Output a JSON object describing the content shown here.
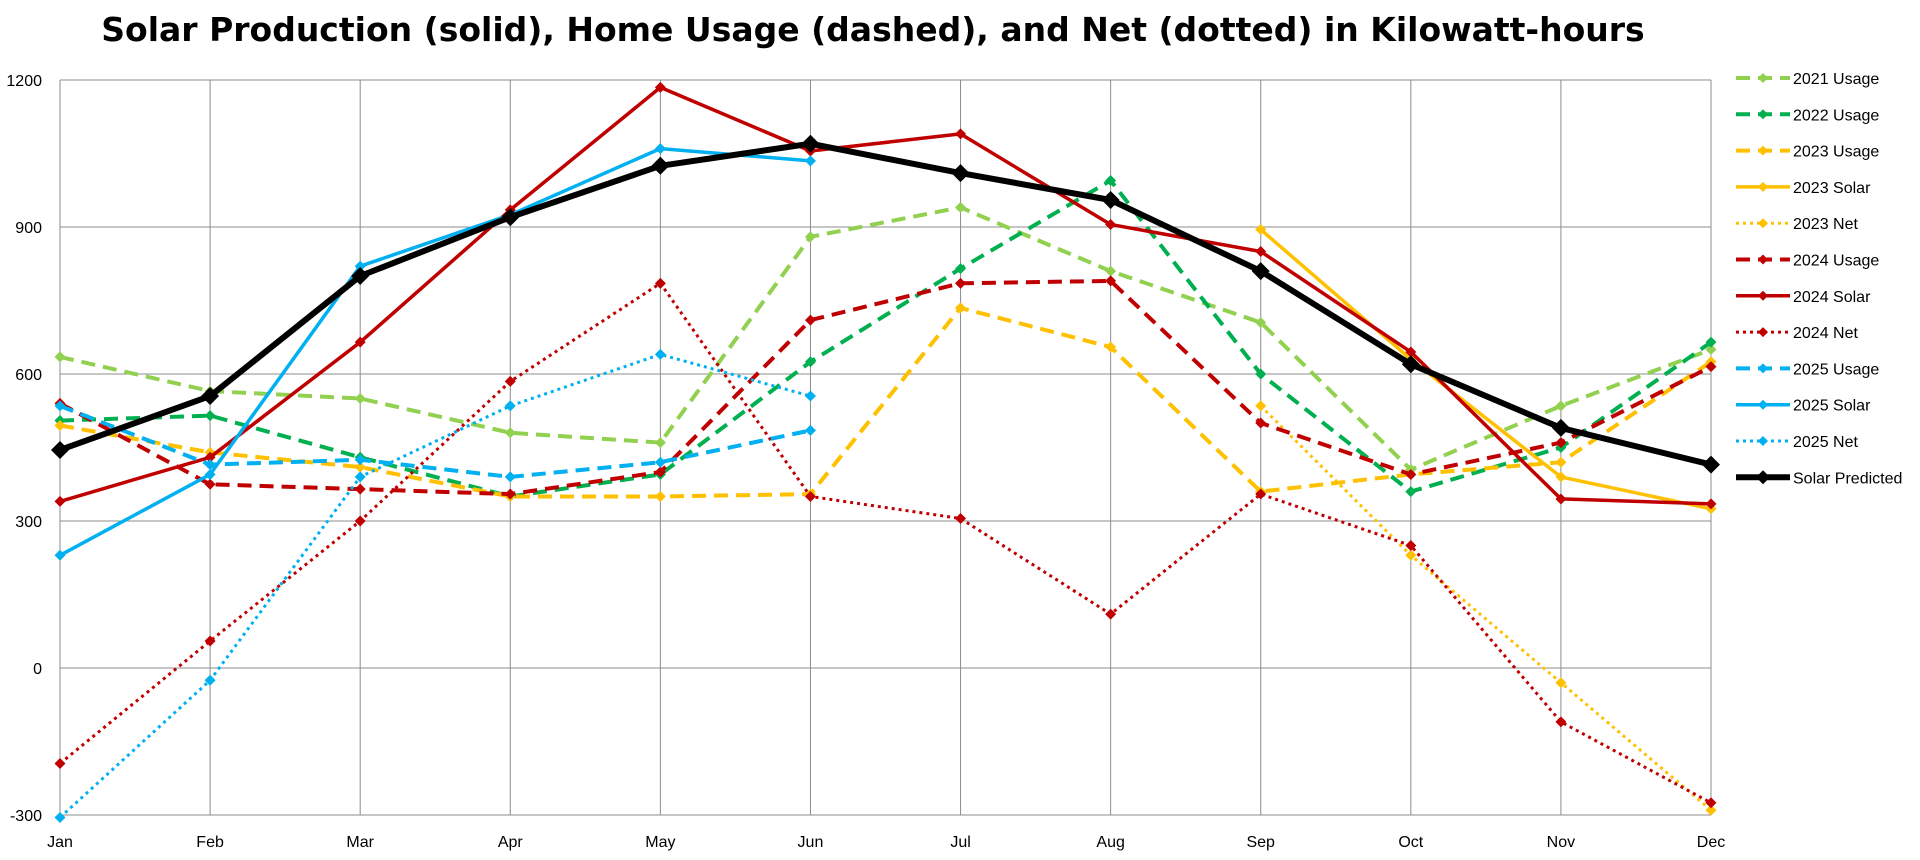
{
  "chart_data": {
    "type": "line",
    "title": "Solar Production (solid), Home Usage (dashed), and Net (dotted) in Kilowatt-hours",
    "xlabel": "",
    "ylabel": "",
    "ylim": [
      -300,
      1200
    ],
    "yticks": [
      -300,
      0,
      300,
      600,
      900,
      1200
    ],
    "grid": true,
    "legend_position": "right",
    "categories": [
      "Jan",
      "Feb",
      "Mar",
      "Apr",
      "May",
      "Jun",
      "Jul",
      "Aug",
      "Sep",
      "Oct",
      "Nov",
      "Dec"
    ],
    "series": [
      {
        "name": "2021 Usage",
        "color": "#92D050",
        "style": "dashed",
        "values": [
          635,
          565,
          550,
          480,
          460,
          880,
          940,
          810,
          705,
          405,
          535,
          650
        ]
      },
      {
        "name": "2022 Usage",
        "color": "#00B050",
        "style": "dashed",
        "values": [
          505,
          515,
          430,
          350,
          395,
          625,
          815,
          995,
          600,
          360,
          450,
          665
        ]
      },
      {
        "name": "2023 Usage",
        "color": "#FFC000",
        "style": "dashed",
        "values": [
          495,
          440,
          410,
          350,
          350,
          355,
          735,
          655,
          360,
          395,
          420,
          625
        ]
      },
      {
        "name": "2023 Solar",
        "color": "#FFC000",
        "style": "solid",
        "values": [
          null,
          null,
          null,
          null,
          null,
          null,
          null,
          null,
          895,
          630,
          390,
          325
        ]
      },
      {
        "name": "2023 Net",
        "color": "#FFC000",
        "style": "dotted",
        "values": [
          null,
          null,
          null,
          null,
          null,
          null,
          null,
          null,
          535,
          230,
          -30,
          -290
        ]
      },
      {
        "name": "2024 Usage",
        "color": "#C00000",
        "style": "dashed",
        "values": [
          540,
          375,
          365,
          355,
          400,
          710,
          785,
          790,
          500,
          395,
          460,
          615
        ]
      },
      {
        "name": "2024 Solar",
        "color": "#C00000",
        "style": "solid",
        "values": [
          340,
          430,
          665,
          935,
          1185,
          1055,
          1090,
          905,
          850,
          645,
          345,
          335
        ]
      },
      {
        "name": "2024 Net",
        "color": "#C00000",
        "style": "dotted",
        "values": [
          -195,
          55,
          300,
          585,
          785,
          350,
          305,
          110,
          355,
          250,
          -110,
          -275
        ]
      },
      {
        "name": "2025 Usage",
        "color": "#00B0F0",
        "style": "dashed",
        "values": [
          535,
          415,
          425,
          390,
          420,
          485,
          null,
          null,
          null,
          null,
          null,
          null
        ]
      },
      {
        "name": "2025 Solar",
        "color": "#00B0F0",
        "style": "solid",
        "values": [
          230,
          395,
          820,
          925,
          1060,
          1035,
          null,
          null,
          null,
          null,
          null,
          null
        ]
      },
      {
        "name": "2025 Net",
        "color": "#00B0F0",
        "style": "dotted",
        "values": [
          -305,
          -25,
          390,
          535,
          640,
          555,
          null,
          null,
          null,
          null,
          null,
          null
        ]
      },
      {
        "name": "Solar Predicted",
        "color": "#000000",
        "style": "solid-bold",
        "values": [
          445,
          555,
          800,
          920,
          1025,
          1070,
          1010,
          955,
          810,
          620,
          490,
          415
        ]
      }
    ]
  }
}
